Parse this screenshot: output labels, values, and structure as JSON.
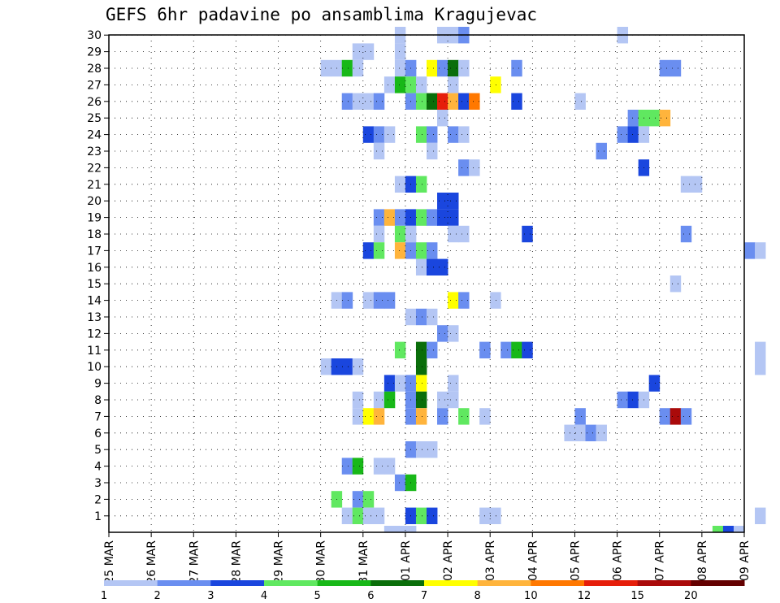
{
  "chart_data": {
    "type": "heatmap",
    "title": "GEFS 6hr padavine po ansamblima Kragujevac",
    "xlabel": "",
    "ylabel": "",
    "x_tick_labels": [
      "25 MAR",
      "26 MAR",
      "27 MAR",
      "28 MAR",
      "29 MAR",
      "30 MAR",
      "31 MAR",
      "01 APR",
      "02 APR",
      "03 APR",
      "04 APR",
      "05 APR",
      "06 APR",
      "07 APR",
      "08 APR",
      "09 APR"
    ],
    "x_range_days": [
      0,
      15
    ],
    "steps_per_day": 4,
    "y_range": [
      0,
      30
    ],
    "y_tick_labels": [
      1,
      2,
      3,
      4,
      5,
      6,
      7,
      8,
      9,
      10,
      11,
      12,
      13,
      14,
      15,
      16,
      17,
      18,
      19,
      20,
      21,
      22,
      23,
      24,
      25,
      26,
      27,
      28,
      29,
      30
    ],
    "legend": {
      "labels": [
        "1",
        "2",
        "3",
        "4",
        "5",
        "6",
        "7",
        "8",
        "10",
        "12",
        "15",
        "20"
      ],
      "colors": [
        "#b4c6f4",
        "#6a8ef0",
        "#1a46de",
        "#60e860",
        "#18b818",
        "#0a6e0a",
        "#ffff00",
        "#ffb43c",
        "#ff7800",
        "#e61e0a",
        "#aa0a0a",
        "#640000"
      ]
    },
    "color_by_level": [
      "#b4c6f4",
      "#6a8ef0",
      "#1a46de",
      "#60e860",
      "#18b818",
      "#0a6e0a",
      "#ffff00",
      "#ffb43c",
      "#ff7800",
      "#e61e0a",
      "#aa0a0a",
      "#640000"
    ],
    "cells": [
      [
        30,
        27,
        1
      ],
      [
        30,
        31,
        1
      ],
      [
        30,
        32,
        1
      ],
      [
        30,
        33,
        2
      ],
      [
        30,
        48,
        1
      ],
      [
        29,
        23,
        1
      ],
      [
        29,
        24,
        1
      ],
      [
        29,
        27,
        1
      ],
      [
        28,
        20,
        1
      ],
      [
        28,
        21,
        1
      ],
      [
        28,
        22,
        5
      ],
      [
        28,
        23,
        1
      ],
      [
        28,
        27,
        1
      ],
      [
        28,
        28,
        2
      ],
      [
        28,
        30,
        7
      ],
      [
        28,
        31,
        2
      ],
      [
        28,
        32,
        6
      ],
      [
        28,
        33,
        1
      ],
      [
        28,
        38,
        2
      ],
      [
        28,
        52,
        2
      ],
      [
        28,
        53,
        2
      ],
      [
        27,
        26,
        1
      ],
      [
        27,
        27,
        5
      ],
      [
        27,
        28,
        4
      ],
      [
        27,
        29,
        1
      ],
      [
        27,
        32,
        1
      ],
      [
        27,
        36,
        7
      ],
      [
        26,
        22,
        2
      ],
      [
        26,
        23,
        1
      ],
      [
        26,
        24,
        1
      ],
      [
        26,
        25,
        2
      ],
      [
        26,
        28,
        2
      ],
      [
        26,
        29,
        4
      ],
      [
        26,
        30,
        6
      ],
      [
        26,
        31,
        10
      ],
      [
        26,
        32,
        8
      ],
      [
        26,
        33,
        3
      ],
      [
        26,
        34,
        9
      ],
      [
        26,
        38,
        3
      ],
      [
        26,
        44,
        1
      ],
      [
        25,
        31,
        1
      ],
      [
        25,
        49,
        2
      ],
      [
        25,
        50,
        4
      ],
      [
        25,
        51,
        4
      ],
      [
        25,
        52,
        8
      ],
      [
        24,
        24,
        3
      ],
      [
        24,
        25,
        2
      ],
      [
        24,
        26,
        1
      ],
      [
        24,
        29,
        4
      ],
      [
        24,
        30,
        2
      ],
      [
        24,
        32,
        2
      ],
      [
        24,
        33,
        1
      ],
      [
        24,
        48,
        2
      ],
      [
        24,
        49,
        3
      ],
      [
        24,
        50,
        1
      ],
      [
        23,
        25,
        1
      ],
      [
        23,
        30,
        1
      ],
      [
        23,
        46,
        2
      ],
      [
        22,
        33,
        2
      ],
      [
        22,
        34,
        1
      ],
      [
        22,
        50,
        3
      ],
      [
        21,
        27,
        1
      ],
      [
        21,
        28,
        3
      ],
      [
        21,
        29,
        4
      ],
      [
        21,
        54,
        1
      ],
      [
        21,
        55,
        1
      ],
      [
        20,
        31,
        3
      ],
      [
        20,
        32,
        3
      ],
      [
        19,
        25,
        2
      ],
      [
        19,
        26,
        8
      ],
      [
        19,
        27,
        2
      ],
      [
        19,
        28,
        3
      ],
      [
        19,
        29,
        4
      ],
      [
        19,
        30,
        2
      ],
      [
        19,
        31,
        3
      ],
      [
        19,
        32,
        3
      ],
      [
        18,
        25,
        1
      ],
      [
        18,
        27,
        4
      ],
      [
        18,
        28,
        1
      ],
      [
        18,
        32,
        1
      ],
      [
        18,
        33,
        1
      ],
      [
        18,
        39,
        3
      ],
      [
        18,
        54,
        2
      ],
      [
        17,
        24,
        3
      ],
      [
        17,
        25,
        4
      ],
      [
        17,
        27,
        8
      ],
      [
        17,
        28,
        2
      ],
      [
        17,
        29,
        4
      ],
      [
        17,
        30,
        2
      ],
      [
        17,
        60,
        2
      ],
      [
        17,
        61,
        1
      ],
      [
        16,
        29,
        1
      ],
      [
        16,
        30,
        3
      ],
      [
        16,
        31,
        3
      ],
      [
        15,
        53,
        1
      ],
      [
        14,
        21,
        1
      ],
      [
        14,
        22,
        2
      ],
      [
        14,
        24,
        1
      ],
      [
        14,
        25,
        2
      ],
      [
        14,
        26,
        2
      ],
      [
        14,
        32,
        7
      ],
      [
        14,
        33,
        2
      ],
      [
        14,
        36,
        1
      ],
      [
        13,
        28,
        1
      ],
      [
        13,
        29,
        2
      ],
      [
        13,
        30,
        1
      ],
      [
        12,
        31,
        2
      ],
      [
        12,
        32,
        1
      ],
      [
        11,
        27,
        4
      ],
      [
        11,
        29,
        6
      ],
      [
        11,
        30,
        2
      ],
      [
        11,
        35,
        2
      ],
      [
        11,
        37,
        2
      ],
      [
        11,
        38,
        5
      ],
      [
        11,
        39,
        3
      ],
      [
        11,
        61,
        1
      ],
      [
        10,
        20,
        1
      ],
      [
        10,
        21,
        3
      ],
      [
        10,
        22,
        3
      ],
      [
        10,
        23,
        1
      ],
      [
        10,
        29,
        6
      ],
      [
        10,
        61,
        1
      ],
      [
        9,
        26,
        3
      ],
      [
        9,
        27,
        1
      ],
      [
        9,
        28,
        2
      ],
      [
        9,
        29,
        7
      ],
      [
        9,
        32,
        1
      ],
      [
        9,
        51,
        3
      ],
      [
        8,
        23,
        1
      ],
      [
        8,
        25,
        1
      ],
      [
        8,
        26,
        5
      ],
      [
        8,
        28,
        2
      ],
      [
        8,
        29,
        6
      ],
      [
        8,
        31,
        1
      ],
      [
        8,
        32,
        1
      ],
      [
        8,
        48,
        2
      ],
      [
        8,
        49,
        3
      ],
      [
        8,
        50,
        1
      ],
      [
        7,
        23,
        1
      ],
      [
        7,
        24,
        7
      ],
      [
        7,
        25,
        8
      ],
      [
        7,
        28,
        2
      ],
      [
        7,
        29,
        8
      ],
      [
        7,
        31,
        2
      ],
      [
        7,
        33,
        4
      ],
      [
        7,
        35,
        1
      ],
      [
        7,
        44,
        2
      ],
      [
        7,
        52,
        2
      ],
      [
        7,
        53,
        11
      ],
      [
        7,
        54,
        2
      ],
      [
        6,
        43,
        1
      ],
      [
        6,
        44,
        1
      ],
      [
        6,
        45,
        2
      ],
      [
        6,
        46,
        1
      ],
      [
        5,
        28,
        2
      ],
      [
        5,
        29,
        1
      ],
      [
        5,
        30,
        1
      ],
      [
        4,
        22,
        2
      ],
      [
        4,
        23,
        5
      ],
      [
        4,
        25,
        1
      ],
      [
        4,
        26,
        1
      ],
      [
        3,
        27,
        2
      ],
      [
        3,
        28,
        5
      ],
      [
        2,
        21,
        4
      ],
      [
        2,
        23,
        2
      ],
      [
        2,
        24,
        4
      ],
      [
        1,
        22,
        1
      ],
      [
        1,
        23,
        4
      ],
      [
        1,
        24,
        1
      ],
      [
        1,
        25,
        1
      ],
      [
        1,
        28,
        3
      ],
      [
        1,
        29,
        4
      ],
      [
        1,
        30,
        3
      ],
      [
        1,
        35,
        1
      ],
      [
        1,
        36,
        1
      ],
      [
        1,
        61,
        1
      ],
      [
        0,
        26,
        1
      ],
      [
        0,
        27,
        1
      ],
      [
        0,
        28,
        1
      ],
      [
        0,
        57,
        4
      ],
      [
        0,
        58,
        3
      ],
      [
        0,
        59,
        1
      ]
    ]
  }
}
